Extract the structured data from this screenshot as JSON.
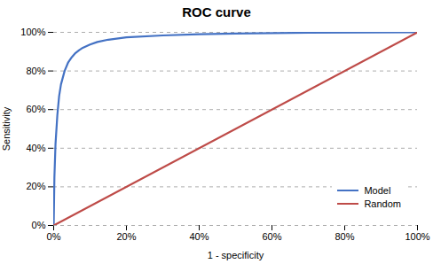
{
  "chart_data": {
    "type": "line",
    "title": "ROC curve",
    "xlabel": "1 - specificity",
    "ylabel": "Sensitivity",
    "series": [
      {
        "name": "Model",
        "color": "#4472C4",
        "x": [
          0,
          0.002,
          0.005,
          0.01,
          0.015,
          0.02,
          0.03,
          0.04,
          0.05,
          0.06,
          0.07,
          0.08,
          0.1,
          0.12,
          0.15,
          0.2,
          0.3,
          0.4,
          0.5,
          0.7,
          1.0
        ],
        "values": [
          0,
          0.25,
          0.42,
          0.57,
          0.67,
          0.73,
          0.8,
          0.845,
          0.872,
          0.893,
          0.908,
          0.92,
          0.937,
          0.95,
          0.962,
          0.974,
          0.984,
          0.99,
          0.994,
          0.998,
          1.0
        ]
      },
      {
        "name": "Random",
        "color": "#BE4B48",
        "x": [
          0,
          1.0
        ],
        "values": [
          0,
          1.0
        ]
      }
    ],
    "xlim": [
      0,
      1
    ],
    "ylim": [
      0,
      1
    ],
    "xticks": [
      {
        "value": 0,
        "label": "0%"
      },
      {
        "value": 0.2,
        "label": "20%"
      },
      {
        "value": 0.4,
        "label": "40%"
      },
      {
        "value": 0.6,
        "label": "60%"
      },
      {
        "value": 0.8,
        "label": "80%"
      },
      {
        "value": 1.0,
        "label": "100%"
      }
    ],
    "yticks": [
      {
        "value": 0,
        "label": "0%"
      },
      {
        "value": 0.2,
        "label": "20%"
      },
      {
        "value": 0.4,
        "label": "40%"
      },
      {
        "value": 0.6,
        "label": "60%"
      },
      {
        "value": 0.8,
        "label": "80%"
      },
      {
        "value": 1.0,
        "label": "100%"
      }
    ],
    "grid": true,
    "legend": "lower right"
  }
}
